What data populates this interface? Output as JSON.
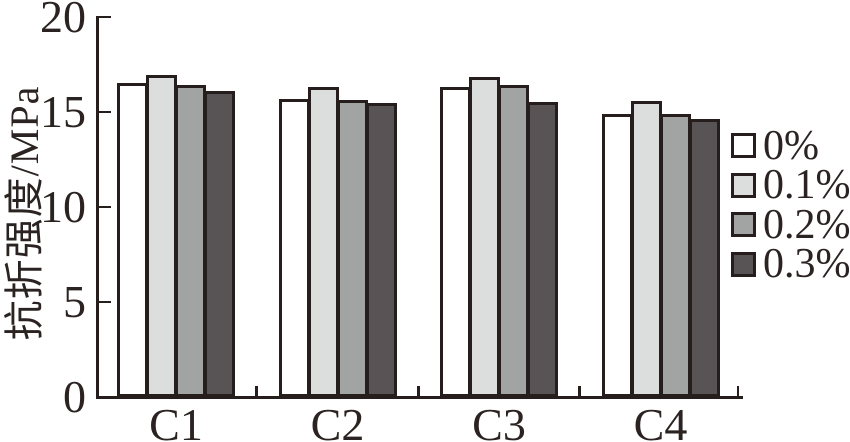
{
  "figure": {
    "background": "#ffffff",
    "axis_color": "#251e1c",
    "text_color": "#2a2321"
  },
  "chart_data": {
    "type": "bar",
    "title": "",
    "ylabel": "抗折强度/MPa",
    "xlabel": "",
    "categories": [
      "C1",
      "C2",
      "C3",
      "C4"
    ],
    "series": [
      {
        "name": "0%",
        "color": "#ffffff",
        "values": [
          16.55,
          15.7,
          16.3,
          14.9
        ]
      },
      {
        "name": "0.1%",
        "color": "#dcdedd",
        "values": [
          16.95,
          16.3,
          16.85,
          15.6
        ]
      },
      {
        "name": "0.2%",
        "color": "#a2a4a3",
        "values": [
          16.4,
          15.65,
          16.4,
          14.9
        ]
      },
      {
        "name": "0.3%",
        "color": "#585455",
        "values": [
          16.1,
          15.45,
          15.55,
          14.65
        ]
      }
    ],
    "ylim": [
      0,
      20
    ],
    "yticks": [
      0,
      5,
      10,
      15,
      20
    ],
    "bar_outline": "#251e1c",
    "legend_position": "right",
    "grid": false
  }
}
